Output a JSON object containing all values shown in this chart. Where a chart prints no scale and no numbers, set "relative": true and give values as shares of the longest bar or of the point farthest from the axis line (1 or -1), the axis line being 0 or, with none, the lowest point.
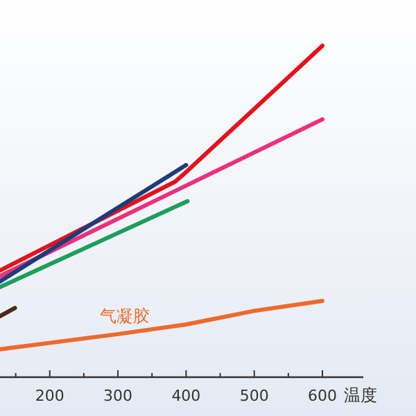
{
  "chart_data": {
    "type": "line",
    "relative": true,
    "xlabel": "温度",
    "xlim": [
      127,
      660
    ],
    "xticks": [
      {
        "value": 150,
        "label": null
      },
      200,
      {
        "value": 250,
        "label": null
      },
      300,
      {
        "value": 350,
        "label": null
      },
      400,
      {
        "value": 450,
        "label": null
      },
      500,
      {
        "value": 550,
        "label": null
      },
      600
    ],
    "tick_labels": "x",
    "grid": false,
    "marker": "none",
    "line_style": "solid",
    "series": [
      {
        "color": "#e0141e",
        "x": [
          127,
          384,
          398,
          600
        ],
        "values": [
          0.322,
          0.59,
          0.615,
          1.0
        ]
      },
      {
        "color": "#e8327c",
        "x": [
          127,
          600
        ],
        "values": [
          0.305,
          0.778
        ]
      },
      {
        "color": "#1e9e5a",
        "x": [
          127,
          402
        ],
        "values": [
          0.272,
          0.531
        ]
      },
      {
        "color": "#1e3c78",
        "x": [
          127,
          400
        ],
        "values": [
          0.289,
          0.64
        ]
      },
      {
        "color": "#4a2a1a",
        "x": [
          127,
          149
        ],
        "values": [
          0.184,
          0.209
        ]
      },
      {
        "color": "#ec6a2c",
        "x": [
          127,
          300,
          400,
          500,
          600
        ],
        "values": [
          0.084,
          0.13,
          0.159,
          0.2,
          0.23
        ]
      }
    ],
    "annotations": [
      "气凝胶"
    ]
  }
}
